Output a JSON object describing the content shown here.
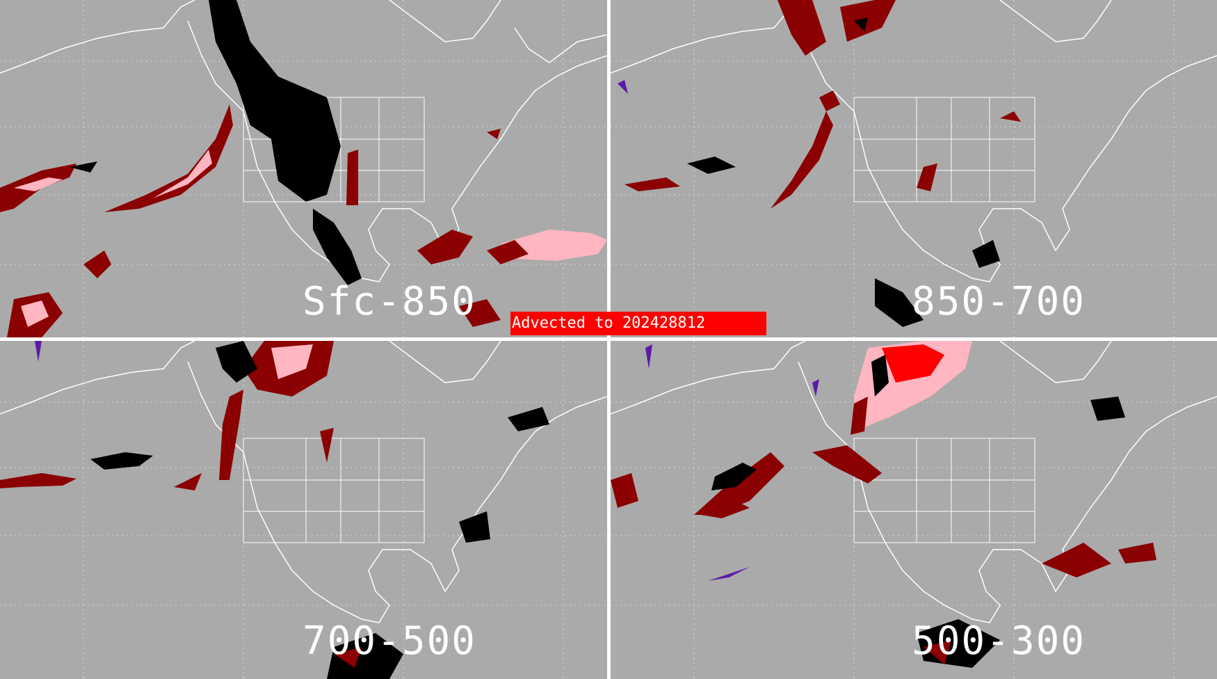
{
  "banner": {
    "text": "Advected to  202428812"
  },
  "panels": [
    {
      "id": "tl",
      "label": "Sfc-850"
    },
    {
      "id": "tr",
      "label": "850-700"
    },
    {
      "id": "bl",
      "label": "700-500"
    },
    {
      "id": "br",
      "label": "500-300"
    }
  ],
  "colors": {
    "background": "#aaaaaa",
    "coastline": "#ffffff",
    "dark_red": "#8b0000",
    "red": "#ff0000",
    "pink": "#ffb6c1",
    "black": "#000000",
    "purple": "#5a1aa8"
  }
}
